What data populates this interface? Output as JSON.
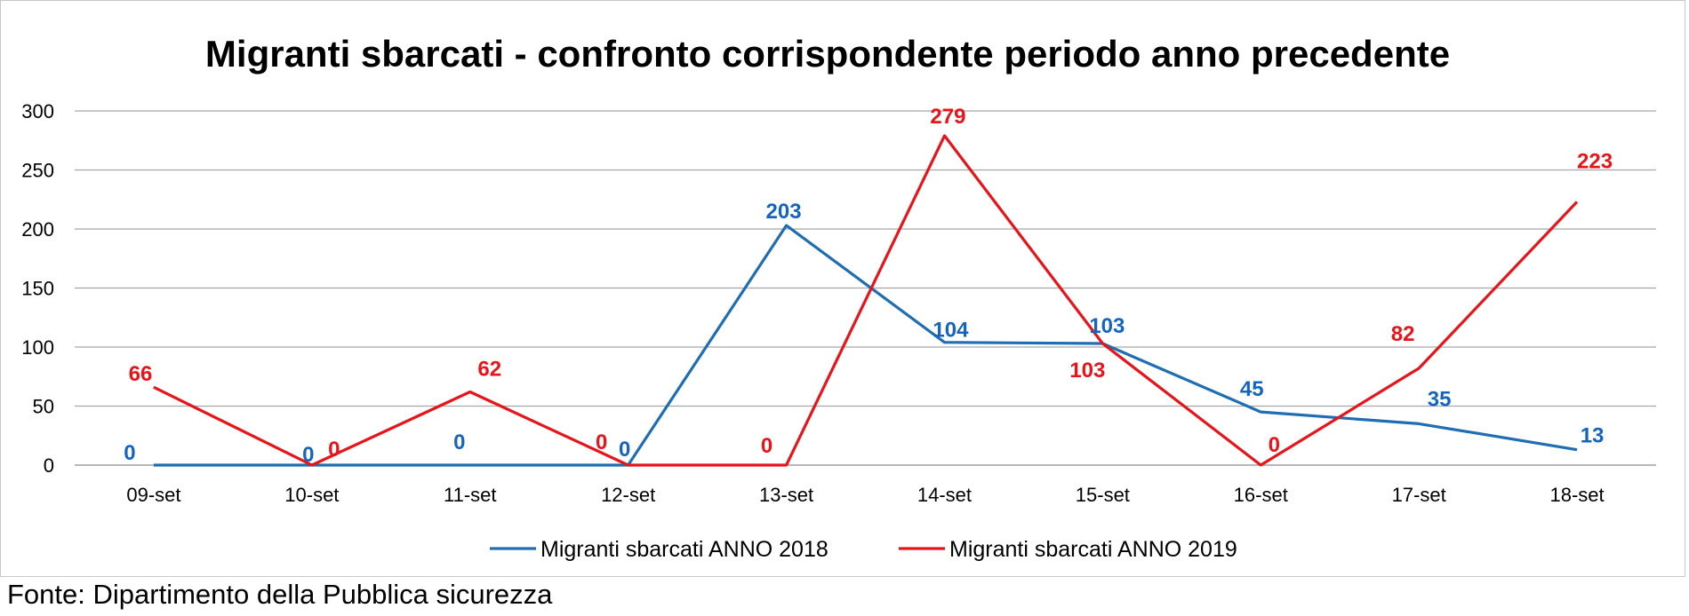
{
  "source_note": "Fonte: Dipartimento della Pubblica sicurezza",
  "chart_data": {
    "type": "line",
    "title": "Migranti sbarcati - confronto corrispondente periodo anno precedente",
    "categories": [
      "09-set",
      "10-set",
      "11-set",
      "12-set",
      "13-set",
      "14-set",
      "15-set",
      "16-set",
      "17-set",
      "18-set"
    ],
    "series": [
      {
        "name": "Migranti sbarcati ANNO 2018",
        "color": "#1f6db3",
        "label_color": "#1565c0",
        "values": [
          0,
          0,
          0,
          0,
          203,
          104,
          103,
          45,
          35,
          13
        ]
      },
      {
        "name": "Migranti sbarcati ANNO 2019",
        "color": "#e8141a",
        "label_color": "#e8141a",
        "values": [
          66,
          0,
          62,
          0,
          0,
          279,
          103,
          0,
          82,
          223
        ]
      }
    ],
    "ylim": [
      0,
      300
    ],
    "yticks": [
      0,
      50,
      100,
      150,
      200,
      250,
      300
    ],
    "grid": true,
    "legend_position": "bottom"
  }
}
